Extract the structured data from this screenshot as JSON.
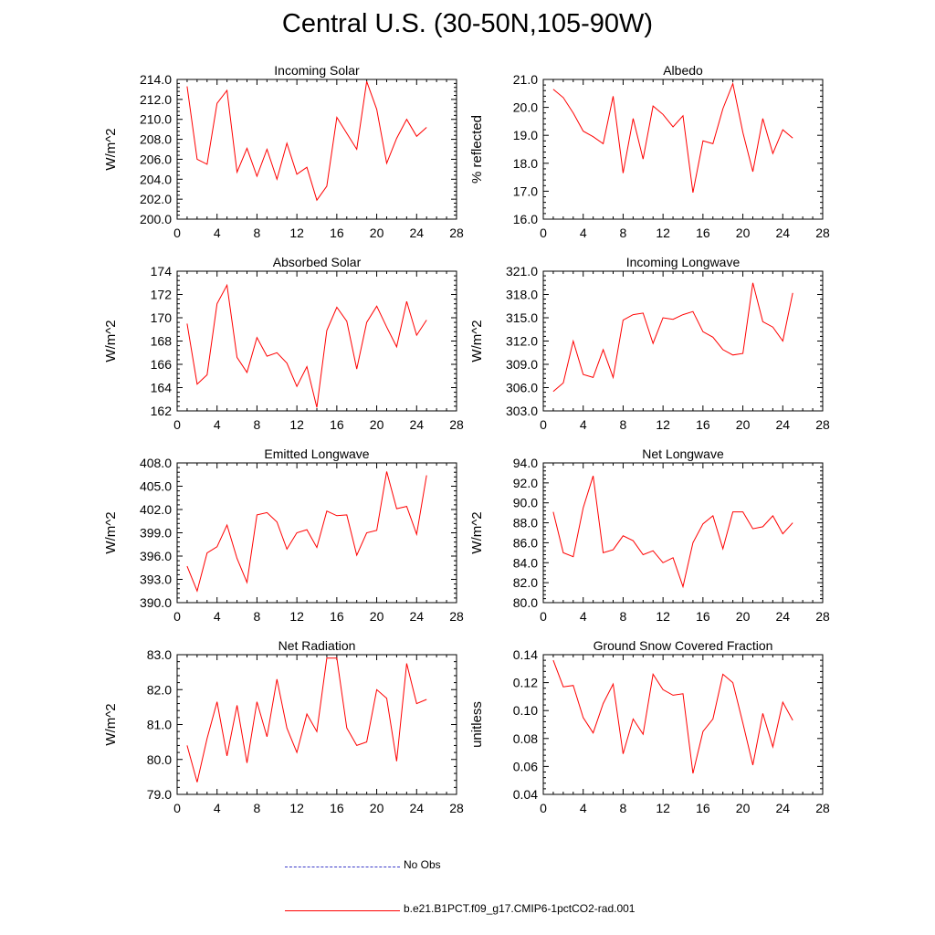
{
  "title": "Central U.S. (30-50N,105-90W)",
  "legend": {
    "obs_label": "No Obs",
    "obs_color": "#3a3ac8",
    "model_label": "b.e21.B1PCT.f09_g17.CMIP6-1pctCO2-rad.001",
    "model_color": "#ff0000"
  },
  "chart_data": [
    {
      "type": "line",
      "title": "Incoming Solar",
      "ylabel": "W/m^2",
      "xlim": [
        0,
        28
      ],
      "xticks": [
        0,
        4,
        8,
        12,
        16,
        20,
        24,
        28
      ],
      "ylim": [
        200,
        214
      ],
      "yticks": [
        "200.0",
        "202.0",
        "204.0",
        "206.0",
        "208.0",
        "210.0",
        "212.0",
        "214.0"
      ],
      "x": [
        1,
        2,
        3,
        4,
        5,
        6,
        7,
        8,
        9,
        10,
        11,
        12,
        13,
        14,
        15,
        16,
        17,
        18,
        19,
        20,
        21,
        22,
        23,
        24,
        25
      ],
      "series": [
        {
          "values": [
            213.3,
            206.0,
            205.5,
            211.6,
            212.9,
            204.7,
            207.1,
            204.3,
            207.0,
            204.0,
            207.6,
            204.5,
            205.2,
            201.9,
            203.3,
            210.2,
            208.6,
            207.0,
            213.8,
            211.0,
            205.6,
            208.1,
            210.0,
            208.3,
            209.2
          ]
        }
      ]
    },
    {
      "type": "line",
      "title": "Albedo",
      "ylabel": "% reflected",
      "xlim": [
        0,
        28
      ],
      "xticks": [
        0,
        4,
        8,
        12,
        16,
        20,
        24,
        28
      ],
      "ylim": [
        16,
        21
      ],
      "yticks": [
        "16.0",
        "17.0",
        "18.0",
        "19.0",
        "20.0",
        "21.0"
      ],
      "x": [
        1,
        2,
        3,
        4,
        5,
        6,
        7,
        8,
        9,
        10,
        11,
        12,
        13,
        14,
        15,
        16,
        17,
        18,
        19,
        20,
        21,
        22,
        23,
        24,
        25
      ],
      "series": [
        {
          "values": [
            20.65,
            20.35,
            19.8,
            19.15,
            18.95,
            18.7,
            20.4,
            17.65,
            19.6,
            18.15,
            20.05,
            19.75,
            19.3,
            19.7,
            16.95,
            18.8,
            18.7,
            19.95,
            20.85,
            19.1,
            17.7,
            19.6,
            18.35,
            19.2,
            18.9
          ]
        }
      ]
    },
    {
      "type": "line",
      "title": "Absorbed Solar",
      "ylabel": "W/m^2",
      "xlim": [
        0,
        28
      ],
      "xticks": [
        0,
        4,
        8,
        12,
        16,
        20,
        24,
        28
      ],
      "ylim": [
        162,
        174
      ],
      "yticks": [
        "162",
        "164",
        "166",
        "168",
        "170",
        "172",
        "174"
      ],
      "x": [
        1,
        2,
        3,
        4,
        5,
        6,
        7,
        8,
        9,
        10,
        11,
        12,
        13,
        14,
        15,
        16,
        17,
        18,
        19,
        20,
        21,
        22,
        23,
        24,
        25
      ],
      "series": [
        {
          "values": [
            169.5,
            164.3,
            165.1,
            171.2,
            172.8,
            166.6,
            165.3,
            168.3,
            166.7,
            167.0,
            166.1,
            164.1,
            165.8,
            162.3,
            168.9,
            170.9,
            169.7,
            165.6,
            169.6,
            171.0,
            169.2,
            167.5,
            171.4,
            168.5,
            169.8
          ]
        }
      ]
    },
    {
      "type": "line",
      "title": "Incoming Longwave",
      "ylabel": "W/m^2",
      "xlim": [
        0,
        28
      ],
      "xticks": [
        0,
        4,
        8,
        12,
        16,
        20,
        24,
        28
      ],
      "ylim": [
        303,
        321
      ],
      "yticks": [
        "303.0",
        "306.0",
        "309.0",
        "312.0",
        "315.0",
        "318.0",
        "321.0"
      ],
      "x": [
        1,
        2,
        3,
        4,
        5,
        6,
        7,
        8,
        9,
        10,
        11,
        12,
        13,
        14,
        15,
        16,
        17,
        18,
        19,
        20,
        21,
        22,
        23,
        24,
        25
      ],
      "series": [
        {
          "values": [
            305.5,
            306.6,
            312.0,
            307.7,
            307.3,
            310.9,
            307.3,
            314.7,
            315.4,
            315.6,
            311.7,
            315.0,
            314.8,
            315.4,
            315.8,
            313.2,
            312.5,
            310.9,
            310.2,
            310.4,
            319.5,
            314.5,
            313.8,
            312.0,
            318.2
          ]
        }
      ]
    },
    {
      "type": "line",
      "title": "Emitted Longwave",
      "ylabel": "W/m^2",
      "xlim": [
        0,
        28
      ],
      "xticks": [
        0,
        4,
        8,
        12,
        16,
        20,
        24,
        28
      ],
      "ylim": [
        390,
        408
      ],
      "yticks": [
        "390.0",
        "393.0",
        "396.0",
        "399.0",
        "402.0",
        "405.0",
        "408.0"
      ],
      "x": [
        1,
        2,
        3,
        4,
        5,
        6,
        7,
        8,
        9,
        10,
        11,
        12,
        13,
        14,
        15,
        16,
        17,
        18,
        19,
        20,
        21,
        22,
        23,
        24,
        25
      ],
      "series": [
        {
          "values": [
            394.7,
            391.5,
            396.4,
            397.2,
            400.0,
            395.7,
            392.6,
            401.3,
            401.6,
            400.4,
            396.9,
            399.0,
            399.4,
            397.1,
            401.8,
            401.2,
            401.3,
            396.1,
            399.0,
            399.3,
            406.9,
            402.1,
            402.4,
            398.8,
            406.4
          ]
        }
      ]
    },
    {
      "type": "line",
      "title": "Net Longwave",
      "ylabel": "W/m^2",
      "xlim": [
        0,
        28
      ],
      "xticks": [
        0,
        4,
        8,
        12,
        16,
        20,
        24,
        28
      ],
      "ylim": [
        80,
        94
      ],
      "yticks": [
        "80.0",
        "82.0",
        "84.0",
        "86.0",
        "88.0",
        "90.0",
        "92.0",
        "94.0"
      ],
      "x": [
        1,
        2,
        3,
        4,
        5,
        6,
        7,
        8,
        9,
        10,
        11,
        12,
        13,
        14,
        15,
        16,
        17,
        18,
        19,
        20,
        21,
        22,
        23,
        24,
        25
      ],
      "series": [
        {
          "values": [
            89.1,
            85.0,
            84.6,
            89.5,
            92.7,
            85.0,
            85.3,
            86.7,
            86.2,
            84.8,
            85.2,
            84.0,
            84.5,
            81.6,
            86.0,
            87.9,
            88.7,
            85.4,
            89.1,
            89.1,
            87.4,
            87.6,
            88.7,
            86.9,
            88.0
          ]
        }
      ]
    },
    {
      "type": "line",
      "title": "Net Radiation",
      "ylabel": "W/m^2",
      "xlim": [
        0,
        28
      ],
      "xticks": [
        0,
        4,
        8,
        12,
        16,
        20,
        24,
        28
      ],
      "ylim": [
        79,
        83
      ],
      "yticks": [
        "79.0",
        "80.0",
        "81.0",
        "82.0",
        "83.0"
      ],
      "x": [
        1,
        2,
        3,
        4,
        5,
        6,
        7,
        8,
        9,
        10,
        11,
        12,
        13,
        14,
        15,
        16,
        17,
        18,
        19,
        20,
        21,
        22,
        23,
        24,
        25
      ],
      "series": [
        {
          "values": [
            80.4,
            79.35,
            80.6,
            81.65,
            80.1,
            81.55,
            79.9,
            81.65,
            80.65,
            82.3,
            80.9,
            80.2,
            81.3,
            80.8,
            82.9,
            82.9,
            80.9,
            80.4,
            80.5,
            82.0,
            81.75,
            79.95,
            82.75,
            81.6,
            81.72
          ]
        }
      ]
    },
    {
      "type": "line",
      "title": "Ground Snow Covered Fraction",
      "ylabel": "unitless",
      "xlim": [
        0,
        28
      ],
      "xticks": [
        0,
        4,
        8,
        12,
        16,
        20,
        24,
        28
      ],
      "ylim": [
        0.04,
        0.14
      ],
      "yticks": [
        "0.04",
        "0.06",
        "0.08",
        "0.10",
        "0.12",
        "0.14"
      ],
      "x": [
        1,
        2,
        3,
        4,
        5,
        6,
        7,
        8,
        9,
        10,
        11,
        12,
        13,
        14,
        15,
        16,
        17,
        18,
        19,
        20,
        21,
        22,
        23,
        24,
        25
      ],
      "series": [
        {
          "values": [
            0.136,
            0.117,
            0.118,
            0.095,
            0.084,
            0.105,
            0.119,
            0.069,
            0.094,
            0.083,
            0.126,
            0.115,
            0.111,
            0.112,
            0.055,
            0.085,
            0.094,
            0.126,
            0.12,
            0.091,
            0.061,
            0.098,
            0.074,
            0.106,
            0.093
          ]
        }
      ]
    }
  ]
}
